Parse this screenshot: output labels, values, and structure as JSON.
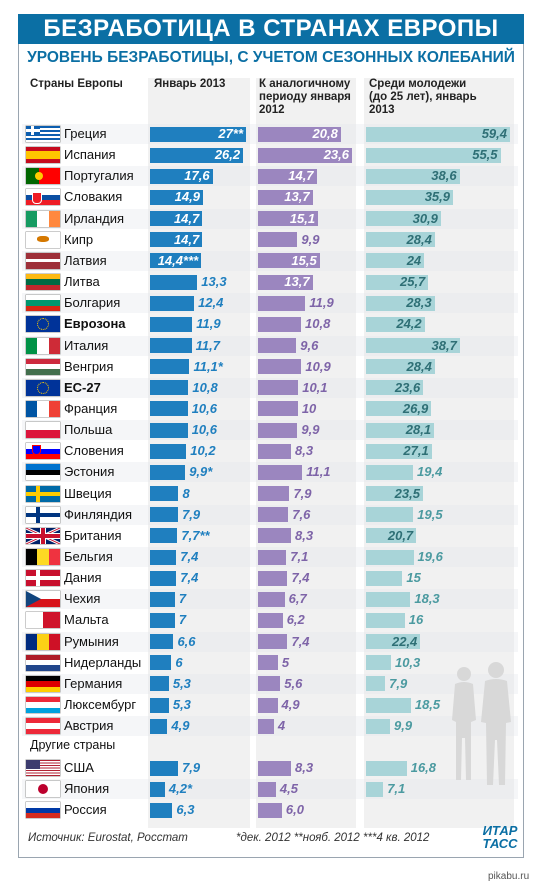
{
  "title": "БЕЗРАБОТИЦА В СТРАНАХ ЕВРОПЫ",
  "subtitle": "УРОВЕНЬ БЕЗРАБОТИЦЫ, С УЧЕТОМ СЕЗОННЫХ КОЛЕБАНИЙ",
  "columns": {
    "country": "Страны Европы",
    "jan2013": "Январь 2013",
    "prev": "К аналогичному периоду января 2012",
    "youth": "Среди молодежи (до 25 лет), январь 2013"
  },
  "other_countries_label": "Другие страны",
  "source": "Источник: Eurostat, Росстат",
  "footnote": "*дек. 2012  **нояб. 2012  ***4 кв. 2012",
  "logo": "ИТАР ТАСС",
  "watermark": "pikabu.ru",
  "colors": {
    "jan": "#1f7fbf",
    "prev": "#9b86bf",
    "youth": "#a8d4d8",
    "title_bg": "#0b6fa4"
  },
  "chart_data": {
    "type": "bar",
    "title": "БЕЗРАБОТИЦА В СТРАНАХ ЕВРОПЫ",
    "subtitle": "УРОВЕНЬ БЕЗРАБОТИЦЫ, С УЧЕТОМ СЕЗОННЫХ КОЛЕБАНИЙ",
    "categories": [
      "Греция",
      "Испания",
      "Португалия",
      "Словакия",
      "Ирландия",
      "Кипр",
      "Латвия",
      "Литва",
      "Болгария",
      "Еврозона",
      "Италия",
      "Венгрия",
      "ЕС-27",
      "Франция",
      "Польша",
      "Словения",
      "Эстония",
      "Швеция",
      "Финляндия",
      "Британия",
      "Бельгия",
      "Дания",
      "Чехия",
      "Мальта",
      "Румыния",
      "Нидерланды",
      "Германия",
      "Люксембург",
      "Австрия",
      "США",
      "Япония",
      "Россия"
    ],
    "series": [
      {
        "name": "Январь 2013",
        "values": [
          27,
          26.2,
          17.6,
          14.9,
          14.7,
          14.7,
          14.4,
          13.3,
          12.4,
          11.9,
          11.7,
          11.1,
          10.8,
          10.6,
          10.6,
          10.2,
          9.9,
          8,
          7.9,
          7.7,
          7.4,
          7.4,
          7,
          7,
          6.6,
          6,
          5.3,
          5.3,
          4.9,
          7.9,
          4.2,
          6.3
        ]
      },
      {
        "name": "К аналогичному периоду января 2012",
        "values": [
          20.8,
          23.6,
          14.7,
          13.7,
          15.1,
          9.9,
          15.5,
          13.7,
          11.9,
          10.8,
          9.6,
          10.9,
          10.1,
          10,
          9.9,
          8.3,
          11.1,
          7.9,
          7.6,
          8.3,
          7.1,
          7.4,
          6.7,
          6.2,
          7.4,
          5,
          5.6,
          4.9,
          4,
          8.3,
          4.5,
          6.0
        ]
      },
      {
        "name": "Среди молодежи (до 25 лет), январь 2013",
        "values": [
          59.4,
          55.5,
          38.6,
          35.9,
          30.9,
          28.4,
          24,
          25.7,
          28.3,
          24.2,
          38.7,
          28.4,
          23.6,
          26.9,
          28.1,
          27.1,
          19.4,
          23.5,
          19.5,
          20.7,
          19.6,
          15,
          18.3,
          16,
          22.4,
          10.3,
          7.9,
          18.5,
          9.9,
          16.8,
          7.1,
          null
        ]
      }
    ],
    "labels": {
      "jan": [
        "27**",
        "26,2",
        "17,6",
        "14,9",
        "14,7",
        "14,7",
        "14,4***",
        "13,3",
        "12,4",
        "11,9",
        "11,7",
        "11,1*",
        "10,8",
        "10,6",
        "10,6",
        "10,2",
        "9,9*",
        "8",
        "7,9",
        "7,7**",
        "7,4",
        "7,4",
        "7",
        "7",
        "6,6",
        "6",
        "5,3",
        "5,3",
        "4,9",
        "7,9",
        "4,2*",
        "6,3"
      ],
      "prev": [
        "20,8",
        "23,6",
        "14,7",
        "13,7",
        "15,1",
        "9,9",
        "15,5",
        "13,7",
        "11,9",
        "10,8",
        "9,6",
        "10,9",
        "10,1",
        "10",
        "9,9",
        "8,3",
        "11,1",
        "7,9",
        "7,6",
        "8,3",
        "7,1",
        "7,4",
        "6,7",
        "6,2",
        "7,4",
        "5",
        "5,6",
        "4,9",
        "4",
        "8,3",
        "4,5",
        "6,0"
      ],
      "youth": [
        "59,4",
        "55,5",
        "38,6",
        "35,9",
        "30,9",
        "28,4",
        "24",
        "25,7",
        "28,3",
        "24,2",
        "38,7",
        "28,4",
        "23,6",
        "26,9",
        "28,1",
        "27,1",
        "19,4",
        "23,5",
        "19,5",
        "20,7",
        "19,6",
        "15",
        "18,3",
        "16",
        "22,4",
        "10,3",
        "7,9",
        "18,5",
        "9,9",
        "16,8",
        "7,1",
        ""
      ]
    },
    "bold_rows": [
      "Еврозона",
      "ЕС-27"
    ],
    "flags": [
      "greece",
      "spain",
      "portugal",
      "slovakia",
      "ireland",
      "cyprus",
      "latvia",
      "lithuania",
      "bulgaria",
      "eu",
      "italy",
      "hungary",
      "eu",
      "france",
      "poland",
      "slovenia",
      "estonia",
      "sweden",
      "finland",
      "uk",
      "belgium",
      "denmark",
      "czech",
      "malta",
      "romania",
      "netherlands",
      "germany",
      "luxembourg",
      "austria",
      "usa",
      "japan",
      "russia"
    ]
  }
}
